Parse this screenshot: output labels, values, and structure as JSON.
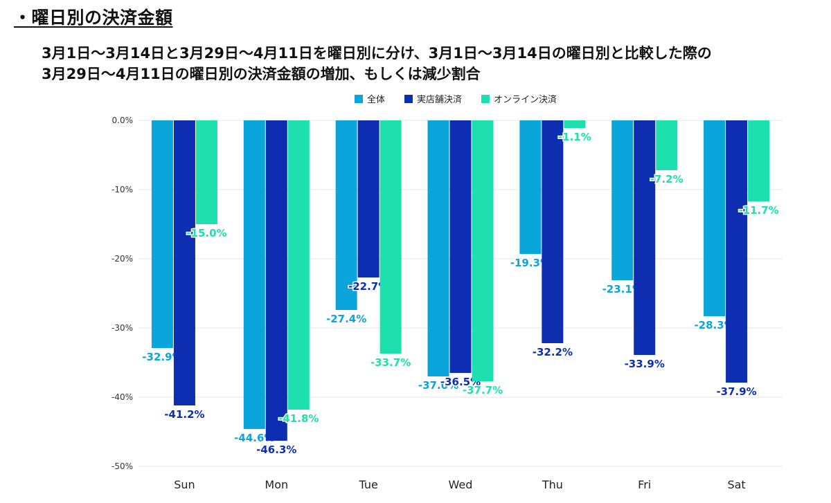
{
  "page": {
    "heading": "・曜日別の決済金額",
    "subtitle_lines": [
      "3月1日～3月14日と3月29日～4月11日を曜日別に分け、3月1日～3月14日の曜日別と比較した際の",
      "3月29日～4月11日の曜日別の決済金額の増加、もしくは減少割合"
    ]
  },
  "chart_data": {
    "type": "bar",
    "categories": [
      "Sun",
      "Mon",
      "Tue",
      "Wed",
      "Thu",
      "Fri",
      "Sat"
    ],
    "series": [
      {
        "name": "全体",
        "color": "#0AA5DB",
        "values": [
          -32.9,
          -44.6,
          -27.4,
          -37.0,
          -19.3,
          -23.1,
          -28.3
        ]
      },
      {
        "name": "実店舗決済",
        "color": "#0D2EB0",
        "values": [
          -41.2,
          -46.3,
          -22.7,
          -36.5,
          -32.2,
          -33.9,
          -37.9
        ]
      },
      {
        "name": "オンライン決済",
        "color": "#1DE0AE",
        "values": [
          -15.0,
          -41.8,
          -33.7,
          -37.7,
          -1.1,
          -7.2,
          -11.7
        ]
      }
    ],
    "yticks": [
      0,
      -10,
      -20,
      -30,
      -40,
      -50
    ],
    "ytick_labels": [
      "0.0%",
      "-10%",
      "-20%",
      "-30%",
      "-40%",
      "-50%"
    ],
    "ylim": [
      -50,
      0
    ],
    "value_suffix": "%",
    "legend_position": "top-center",
    "grid": true
  }
}
